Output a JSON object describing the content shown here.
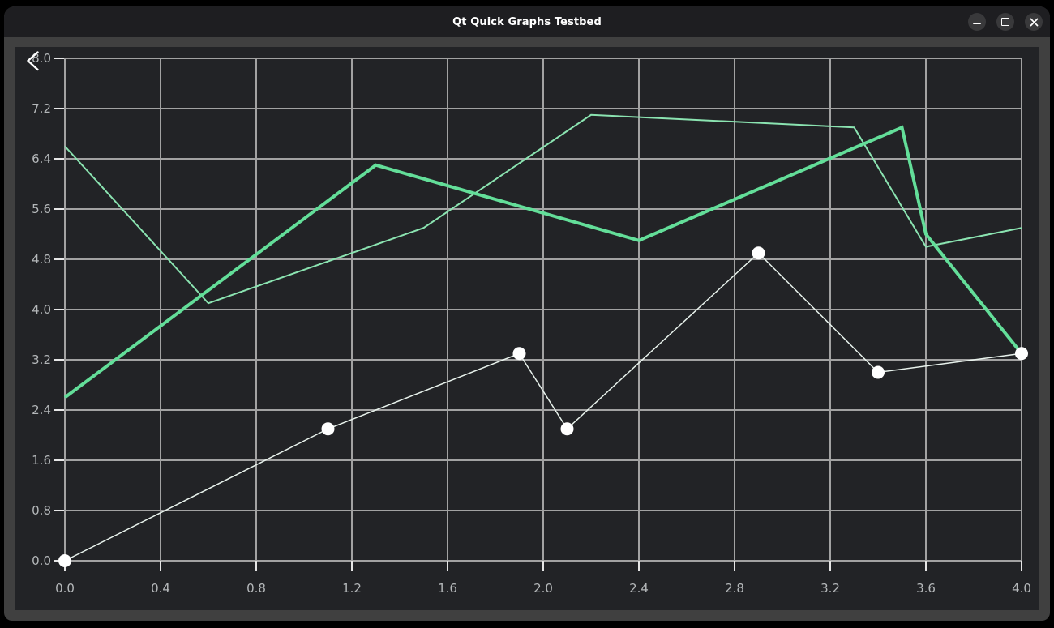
{
  "window": {
    "title": "Qt Quick Graphs Testbed",
    "controls": [
      {
        "name": "minimize-button",
        "icon": "minimize-icon"
      },
      {
        "name": "maximize-button",
        "icon": "maximize-icon"
      },
      {
        "name": "close-button",
        "icon": "close-icon"
      }
    ],
    "back_icon": "chevron-left-icon"
  },
  "chart_data": {
    "type": "line",
    "title": "",
    "xlabel": "",
    "ylabel": "",
    "grid": true,
    "legend": false,
    "x_axis": {
      "min": 0.0,
      "max": 4.0,
      "tick_values": [
        0.0,
        0.4,
        0.8,
        1.2,
        1.6,
        2.0,
        2.4,
        2.8,
        3.2,
        3.6,
        4.0
      ],
      "tick_labels": [
        "0.0",
        "0.4",
        "0.8",
        "1.2",
        "1.6",
        "2.0",
        "2.4",
        "2.8",
        "3.2",
        "3.6",
        "4.0"
      ]
    },
    "y_axis": {
      "min": 0.0,
      "max": 8.0,
      "tick_values": [
        0.0,
        0.8,
        1.6,
        2.4,
        3.2,
        4.0,
        4.8,
        5.6,
        6.4,
        7.2,
        8.0
      ],
      "tick_labels": [
        "0.0",
        "0.8",
        "1.6",
        "2.4",
        "3.2",
        "4.0",
        "4.8",
        "5.6",
        "6.4",
        "7.2",
        "8.0"
      ]
    },
    "series": [
      {
        "name": "thin-green-line-series",
        "color": "#8be4b1",
        "width": 2,
        "marker": null,
        "points": [
          [
            0.0,
            6.6
          ],
          [
            0.6,
            4.1
          ],
          [
            1.5,
            5.3
          ],
          [
            2.2,
            7.1
          ],
          [
            3.3,
            6.9
          ],
          [
            3.6,
            5.0
          ],
          [
            4.0,
            5.3
          ]
        ]
      },
      {
        "name": "thick-green-line-series",
        "color": "#63de99",
        "width": 4,
        "marker": null,
        "points": [
          [
            0.0,
            2.6
          ],
          [
            1.3,
            6.3
          ],
          [
            2.4,
            5.1
          ],
          [
            3.5,
            6.9
          ],
          [
            3.6,
            5.2
          ],
          [
            4.0,
            3.3
          ]
        ]
      },
      {
        "name": "white-marker-line-series",
        "color": "#e8f2ec",
        "width": 1.5,
        "marker": {
          "radius": 8,
          "fill": "#ffffff"
        },
        "points": [
          [
            0.0,
            0.0
          ],
          [
            1.1,
            2.1
          ],
          [
            1.9,
            3.3
          ],
          [
            2.1,
            2.1
          ],
          [
            2.9,
            4.9
          ],
          [
            3.4,
            3.0
          ],
          [
            4.0,
            3.3
          ]
        ]
      }
    ],
    "colors": {
      "plot_bg": "#222326",
      "grid": "#a2a2a2",
      "tick": "#e6e6e6",
      "label": "#b4b7b9"
    }
  }
}
